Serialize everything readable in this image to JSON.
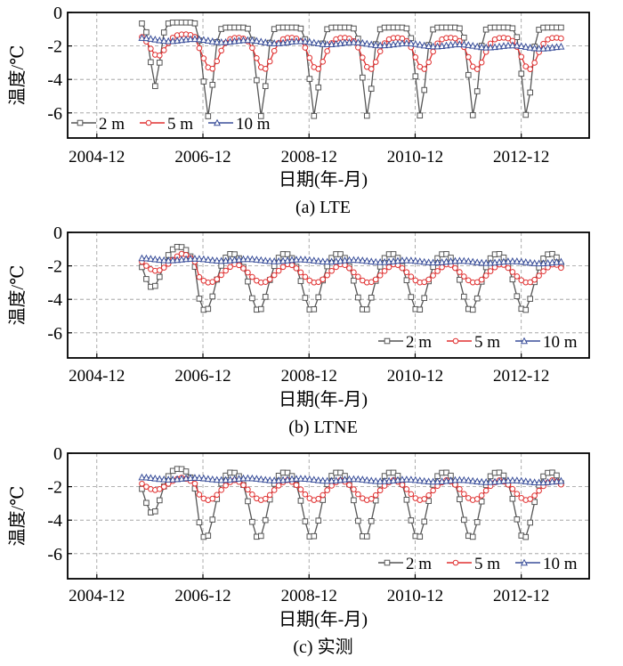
{
  "chart_data": [
    {
      "type": "line",
      "caption": "(a) LTE",
      "xlabel": "日期(年-月)",
      "ylabel": "温度/℃",
      "x_ticks": [
        "2004-12",
        "2006-12",
        "2008-12",
        "2010-12",
        "2012-12"
      ],
      "y_ticks": [
        "0",
        "-2",
        "-4",
        "-6"
      ],
      "ylim": [
        -7.5,
        0
      ],
      "legend_position": "bottom-left",
      "series": [
        {
          "name": "2 m",
          "color": "#555555",
          "marker": "square",
          "annual_high": -0.9,
          "annual_low": -6.2,
          "high_phase": 0.6,
          "low_width": 0.07,
          "first_year_high": -0.6,
          "first_year_low": -4.4
        },
        {
          "name": "5 m",
          "color": "#e03030",
          "marker": "circle",
          "annual_high": -1.5,
          "annual_low": -3.4,
          "high_phase": 0.65,
          "low_width": 0.12,
          "first_year_high": -1.3,
          "first_year_low": -2.6
        },
        {
          "name": "10 m",
          "color": "#3a4f9a",
          "marker": "triangle",
          "start_value": -1.6,
          "end_value": -2.1,
          "amplitude": 0.08
        }
      ]
    },
    {
      "type": "line",
      "caption": "(b) LTNE",
      "xlabel": "日期(年-月)",
      "ylabel": "温度/℃",
      "x_ticks": [
        "2004-12",
        "2006-12",
        "2008-12",
        "2010-12",
        "2012-12"
      ],
      "y_ticks": [
        "0",
        "-2",
        "-4",
        "-6"
      ],
      "ylim": [
        -7.5,
        0
      ],
      "legend_position": "bottom-right",
      "series": [
        {
          "name": "2 m",
          "color": "#555555",
          "marker": "square",
          "annual_high": -1.2,
          "annual_low": -4.7,
          "high_phase": 0.55,
          "low_width": 0.14,
          "first_year_high": -0.8,
          "first_year_low": -3.3
        },
        {
          "name": "5 m",
          "color": "#e03030",
          "marker": "circle",
          "annual_high": -1.7,
          "annual_low": -3.0,
          "high_phase": 0.62,
          "low_width": 0.2,
          "first_year_high": -1.1,
          "first_year_low": -2.3
        },
        {
          "name": "10 m",
          "color": "#3a4f9a",
          "marker": "triangle",
          "start_value": -1.6,
          "end_value": -1.8,
          "amplitude": 0.06
        }
      ]
    },
    {
      "type": "line",
      "caption": "(c) 实测",
      "xlabel": "日期(年-月)",
      "ylabel": "温度/℃",
      "x_ticks": [
        "2004-12",
        "2006-12",
        "2008-12",
        "2010-12",
        "2012-12"
      ],
      "y_ticks": [
        "0",
        "-2",
        "-4",
        "-6"
      ],
      "ylim": [
        -7.5,
        0
      ],
      "legend_position": "bottom-right",
      "series": [
        {
          "name": "2 m",
          "color": "#555555",
          "marker": "square",
          "annual_high": -1.1,
          "annual_low": -5.1,
          "high_phase": 0.55,
          "low_width": 0.13,
          "first_year_high": -0.9,
          "first_year_low": -3.6
        },
        {
          "name": "5 m",
          "color": "#e03030",
          "marker": "circle",
          "annual_high": -1.5,
          "annual_low": -2.8,
          "high_phase": 0.6,
          "low_width": 0.18,
          "first_year_high": -1.4,
          "first_year_low": -2.2
        },
        {
          "name": "10 m",
          "color": "#3a4f9a",
          "marker": "triangle",
          "start_value": -1.5,
          "end_value": -1.7,
          "amplitude": 0.06
        }
      ]
    }
  ]
}
